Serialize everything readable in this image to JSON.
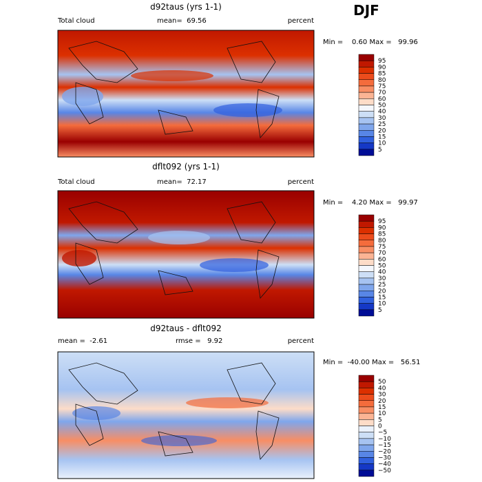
{
  "season": "DJF",
  "panels": [
    {
      "title": "d92taus (yrs 1-1)",
      "left_label": "Total cloud",
      "center_label": "mean=  69.56",
      "units": "percent",
      "minmax": "Min =    0.60 Max =   99.96",
      "colorbar": {
        "labels": [
          "95",
          "90",
          "85",
          "80",
          "75",
          "70",
          "60",
          "50",
          "40",
          "30",
          "25",
          "20",
          "15",
          "10",
          "5"
        ],
        "colors": [
          "#990000",
          "#c01800",
          "#dc3000",
          "#ec4c1c",
          "#f46c3c",
          "#f88e64",
          "#fbb494",
          "#fddcc8",
          "#f4f7fd",
          "#cddff6",
          "#a6c3f1",
          "#7fa6ec",
          "#5886e6",
          "#3060de",
          "#1538c6",
          "#000d96"
        ]
      }
    },
    {
      "title": "dflt092 (yrs 1-1)",
      "left_label": "Total cloud",
      "center_label": "mean=  72.17",
      "units": "percent",
      "minmax": "Min =    4.20 Max =   99.97",
      "colorbar": {
        "labels": [
          "95",
          "90",
          "85",
          "80",
          "75",
          "70",
          "60",
          "50",
          "40",
          "30",
          "25",
          "20",
          "15",
          "10",
          "5"
        ],
        "colors": [
          "#990000",
          "#c01800",
          "#dc3000",
          "#ec4c1c",
          "#f46c3c",
          "#f88e64",
          "#fbb494",
          "#fddcc8",
          "#f4f7fd",
          "#cddff6",
          "#a6c3f1",
          "#7fa6ec",
          "#5886e6",
          "#3060de",
          "#1538c6",
          "#000d96"
        ]
      }
    },
    {
      "title": "d92taus - dflt092",
      "left_label": "mean =  -2.61",
      "center_label": "rmse =   9.92",
      "units": "percent",
      "minmax": "Min =  -40.00 Max =   56.51",
      "colorbar": {
        "labels": [
          "50",
          "40",
          "30",
          "20",
          "15",
          "10",
          "5",
          "0",
          "−5",
          "−10",
          "−15",
          "−20",
          "−30",
          "−40",
          "−50"
        ],
        "colors": [
          "#990000",
          "#c01800",
          "#dc3000",
          "#ec4c1c",
          "#f46c3c",
          "#f88e64",
          "#fbb494",
          "#fddcc8",
          "#eaf1fc",
          "#cddff6",
          "#a6c3f1",
          "#7fa6ec",
          "#5886e6",
          "#3060de",
          "#1538c6",
          "#000d96"
        ]
      }
    }
  ]
}
